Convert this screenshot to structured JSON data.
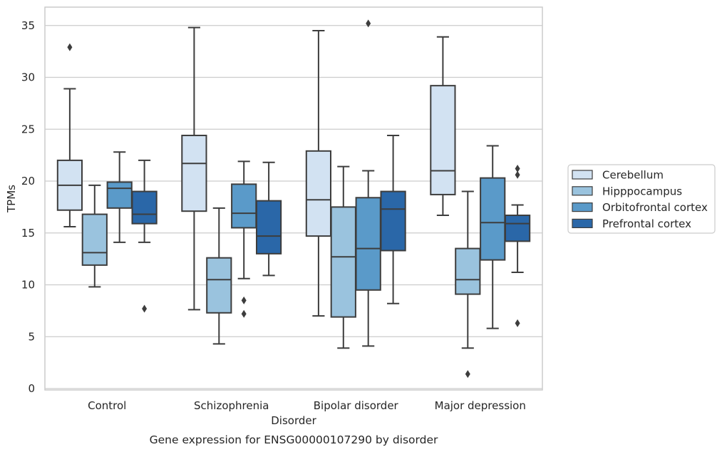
{
  "chart_data": {
    "type": "box",
    "title": "",
    "caption": "Gene expression for ENSG00000107290 by disorder",
    "xlabel": "Disorder",
    "ylabel": "TPMs",
    "ylim": [
      0,
      37
    ],
    "yticks": [
      0,
      5,
      10,
      15,
      20,
      25,
      30,
      35
    ],
    "grid": "horizontal",
    "legend_position": "right",
    "categories": [
      "Control",
      "Schizophrenia",
      "Bipolar disorder",
      "Major depression"
    ],
    "series": [
      {
        "name": "Cerebellum",
        "color": "#d2e2f2",
        "boxes": [
          {
            "whislo": 15.6,
            "q1": 17.2,
            "med": 19.6,
            "q3": 22.0,
            "whishi": 28.9,
            "fliers": [
              32.9
            ]
          },
          {
            "whislo": 7.6,
            "q1": 17.1,
            "med": 21.7,
            "q3": 24.4,
            "whishi": 34.8,
            "fliers": []
          },
          {
            "whislo": 7.0,
            "q1": 14.7,
            "med": 18.2,
            "q3": 22.9,
            "whishi": 34.5,
            "fliers": []
          },
          {
            "whislo": 16.7,
            "q1": 18.7,
            "med": 21.0,
            "q3": 29.2,
            "whishi": 33.9,
            "fliers": []
          }
        ]
      },
      {
        "name": "Hipppocampus",
        "color": "#9ac3de",
        "boxes": [
          {
            "whislo": 9.8,
            "q1": 11.9,
            "med": 13.1,
            "q3": 16.8,
            "whishi": 19.6,
            "fliers": []
          },
          {
            "whislo": 4.3,
            "q1": 7.3,
            "med": 10.5,
            "q3": 12.6,
            "whishi": 17.4,
            "fliers": []
          },
          {
            "whislo": 3.9,
            "q1": 6.9,
            "med": 12.7,
            "q3": 17.5,
            "whishi": 21.4,
            "fliers": []
          },
          {
            "whislo": 3.9,
            "q1": 9.1,
            "med": 10.5,
            "q3": 13.5,
            "whishi": 19.0,
            "fliers": [
              1.4
            ]
          }
        ]
      },
      {
        "name": "Orbitofrontal cortex",
        "color": "#5a9ac9",
        "boxes": [
          {
            "whislo": 14.1,
            "q1": 17.4,
            "med": 19.3,
            "q3": 19.9,
            "whishi": 22.8,
            "fliers": []
          },
          {
            "whislo": 10.6,
            "q1": 15.5,
            "med": 16.9,
            "q3": 19.7,
            "whishi": 21.9,
            "fliers": [
              8.5,
              7.2
            ]
          },
          {
            "whislo": 4.1,
            "q1": 9.5,
            "med": 13.5,
            "q3": 18.4,
            "whishi": 21.0,
            "fliers": [
              35.2
            ]
          },
          {
            "whislo": 5.8,
            "q1": 12.4,
            "med": 16.0,
            "q3": 20.3,
            "whishi": 23.4,
            "fliers": []
          }
        ]
      },
      {
        "name": "Prefrontal cortex",
        "color": "#2a67a8",
        "boxes": [
          {
            "whislo": 14.1,
            "q1": 15.9,
            "med": 16.8,
            "q3": 19.0,
            "whishi": 22.0,
            "fliers": [
              7.7
            ]
          },
          {
            "whislo": 10.9,
            "q1": 13.0,
            "med": 14.7,
            "q3": 18.1,
            "whishi": 21.8,
            "fliers": []
          },
          {
            "whislo": 8.2,
            "q1": 13.3,
            "med": 17.3,
            "q3": 19.0,
            "whishi": 24.4,
            "fliers": []
          },
          {
            "whislo": 11.2,
            "q1": 14.2,
            "med": 15.9,
            "q3": 16.7,
            "whishi": 17.7,
            "fliers": [
              21.2,
              20.6,
              6.3
            ]
          }
        ]
      }
    ]
  }
}
